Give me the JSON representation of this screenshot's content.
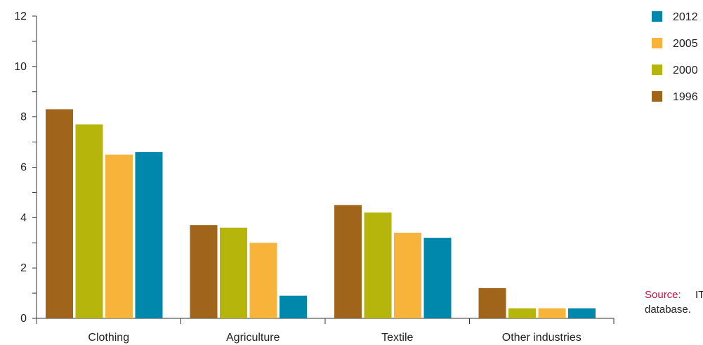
{
  "chart_data": {
    "type": "bar",
    "categories": [
      "Clothing",
      "Agriculture",
      "Textile",
      "Other industries"
    ],
    "series": [
      {
        "name": "1996",
        "color": "#a0651a",
        "values": [
          8.3,
          3.7,
          4.5,
          1.2
        ]
      },
      {
        "name": "2000",
        "color": "#b5b50c",
        "values": [
          7.7,
          3.6,
          4.2,
          0.4
        ]
      },
      {
        "name": "2005",
        "color": "#f8b33b",
        "values": [
          6.5,
          3.0,
          3.4,
          0.4
        ]
      },
      {
        "name": "2012",
        "color": "#0087ac",
        "values": [
          6.6,
          0.9,
          3.2,
          0.4
        ]
      }
    ],
    "legend_order": [
      "2012",
      "2005",
      "2000",
      "1996"
    ],
    "legend_placement": "right",
    "ylim": [
      0,
      12
    ],
    "y_ticks": [
      0,
      2,
      4,
      6,
      8,
      10,
      12
    ],
    "grid": false,
    "title": "",
    "xlabel": "",
    "ylabel": ""
  },
  "source": {
    "label": "Source:",
    "text_line1": "IT",
    "text_line2": "database."
  }
}
